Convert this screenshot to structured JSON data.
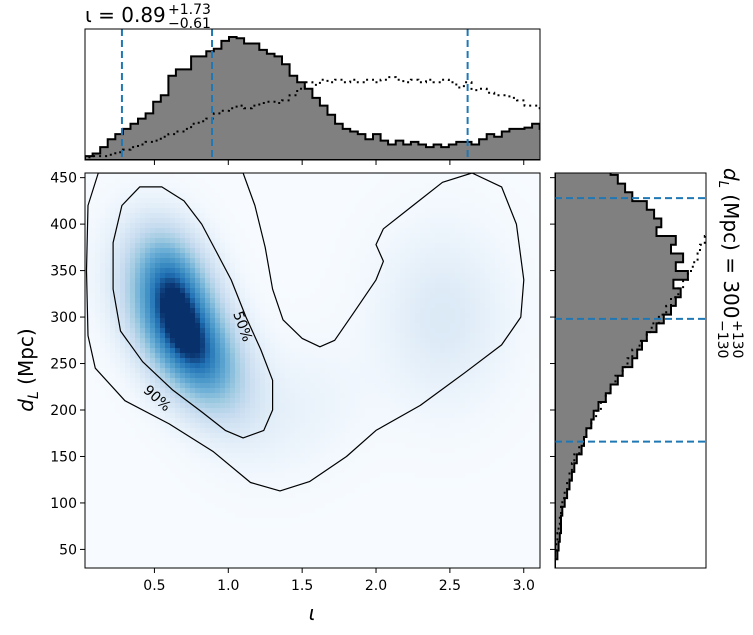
{
  "chart_data": [
    {
      "type": "heatmap",
      "panel": "joint",
      "xlabel": "ι",
      "ylabel_main": "d",
      "ylabel_sub": "L",
      "ylabel_unit": " (Mpc)",
      "xlim": [
        0.03,
        3.11
      ],
      "ylim": [
        30,
        455
      ],
      "xticks": [
        0.5,
        1.0,
        1.5,
        2.0,
        2.5,
        3.0
      ],
      "xtick_labels": [
        "0.5",
        "1.0",
        "1.5",
        "2.0",
        "2.5",
        "3.0"
      ],
      "yticks": [
        50,
        100,
        150,
        200,
        250,
        300,
        350,
        400,
        450
      ],
      "ytick_labels": [
        "50",
        "100",
        "150",
        "200",
        "250",
        "300",
        "350",
        "400",
        "450"
      ],
      "colormap": "Blues",
      "density_components": [
        {
          "x": 0.72,
          "y": 275,
          "sx": 0.24,
          "sy": 48,
          "rho": -0.5,
          "w": 1.0
        },
        {
          "x": 0.62,
          "y": 345,
          "sx": 0.18,
          "sy": 38,
          "rho": -0.3,
          "w": 0.55
        },
        {
          "x": 2.45,
          "y": 300,
          "sx": 0.28,
          "sy": 60,
          "rho": 0.0,
          "w": 0.12
        },
        {
          "x": 1.45,
          "y": 200,
          "sx": 0.3,
          "sy": 45,
          "rho": 0.2,
          "w": 0.05
        }
      ],
      "contours": [
        {
          "label": "50%",
          "label_x": 1.1,
          "label_y": 290,
          "points": [
            [
              0.55,
              440
            ],
            [
              0.7,
              425
            ],
            [
              0.82,
              400
            ],
            [
              0.92,
              370
            ],
            [
              1.02,
              340
            ],
            [
              1.12,
              300
            ],
            [
              1.22,
              265
            ],
            [
              1.3,
              232
            ],
            [
              1.3,
              200
            ],
            [
              1.24,
              178
            ],
            [
              1.1,
              170
            ],
            [
              0.98,
              178
            ],
            [
              0.82,
              198
            ],
            [
              0.62,
              222
            ],
            [
              0.42,
              252
            ],
            [
              0.27,
              285
            ],
            [
              0.22,
              330
            ],
            [
              0.22,
              380
            ],
            [
              0.28,
              420
            ],
            [
              0.4,
              440
            ]
          ]
        },
        {
          "label": "90%",
          "label_x": 0.52,
          "label_y": 213,
          "points": [
            [
              0.12,
              455
            ],
            [
              0.05,
              420
            ],
            [
              0.04,
              350
            ],
            [
              0.05,
              280
            ],
            [
              0.1,
              245
            ],
            [
              0.3,
              210
            ],
            [
              0.6,
              185
            ],
            [
              0.9,
              155
            ],
            [
              1.15,
              122
            ],
            [
              1.35,
              113
            ],
            [
              1.55,
              123
            ],
            [
              1.8,
              150
            ],
            [
              2.0,
              178
            ],
            [
              2.3,
              205
            ],
            [
              2.6,
              240
            ],
            [
              2.85,
              270
            ],
            [
              2.98,
              300
            ],
            [
              3.0,
              340
            ],
            [
              2.95,
              400
            ],
            [
              2.85,
              440
            ],
            [
              2.65,
              455
            ],
            [
              2.45,
              445
            ],
            [
              2.25,
              420
            ],
            [
              2.05,
              395
            ],
            [
              2.0,
              378
            ],
            [
              2.05,
              360
            ],
            [
              2.0,
              340
            ],
            [
              1.85,
              305
            ],
            [
              1.72,
              275
            ],
            [
              1.62,
              268
            ],
            [
              1.5,
              277
            ],
            [
              1.37,
              297
            ],
            [
              1.3,
              330
            ],
            [
              1.25,
              375
            ],
            [
              1.18,
              420
            ],
            [
              1.1,
              455
            ]
          ]
        }
      ]
    },
    {
      "type": "area",
      "panel": "top-marginal",
      "title": "ι = 0.89",
      "title_sup": "+1.73",
      "title_sub": "−0.61",
      "quantile_lines": [
        0.28,
        0.89,
        2.62
      ],
      "bins_x_start": 0.03,
      "bins_width": 0.0513,
      "filled_histogram": [
        3,
        5,
        10,
        16,
        20,
        24,
        28,
        32,
        36,
        45,
        50,
        65,
        70,
        70,
        80,
        80,
        84,
        86,
        92,
        95,
        94,
        90,
        90,
        85,
        82,
        80,
        74,
        65,
        60,
        55,
        48,
        42,
        35,
        28,
        24,
        22,
        20,
        16,
        20,
        15,
        12,
        15,
        12,
        14,
        12,
        10,
        12,
        10,
        12,
        14,
        14,
        12,
        16,
        20,
        18,
        22,
        24,
        24,
        25,
        28,
        24,
        28,
        22,
        18,
        15,
        10,
        8,
        6,
        8,
        6,
        4,
        3
      ],
      "dotted_histogram": [
        2,
        3,
        3,
        4,
        6,
        8,
        10,
        12,
        14,
        15,
        18,
        20,
        22,
        24,
        28,
        30,
        32,
        36,
        38,
        40,
        42,
        40,
        42,
        44,
        45,
        44,
        46,
        50,
        55,
        60,
        58,
        62,
        60,
        62,
        60,
        62,
        60,
        62,
        60,
        62,
        64,
        62,
        60,
        62,
        60,
        62,
        60,
        62,
        60,
        56,
        60,
        54,
        55,
        52,
        50,
        50,
        48,
        46,
        42,
        42,
        40,
        38,
        36,
        32,
        30,
        28,
        24,
        20,
        15,
        10,
        6,
        3
      ]
    },
    {
      "type": "area",
      "panel": "right-marginal",
      "title": "d",
      "title_sub_main": "L",
      "title_rest": " (Mpc) = 300",
      "title_sup": "+130",
      "title_sub": "−130",
      "quantile_lines": [
        166,
        298,
        428
      ],
      "bins_y_start": 30,
      "bins_height": 9.4,
      "filled_histogram": [
        0,
        2,
        3,
        4,
        5,
        5,
        6,
        8,
        10,
        12,
        14,
        16,
        18,
        22,
        24,
        26,
        30,
        32,
        36,
        42,
        46,
        52,
        56,
        64,
        68,
        72,
        76,
        84,
        90,
        96,
        100,
        104,
        98,
        110,
        100,
        106,
        96,
        100,
        84,
        88,
        82,
        76,
        64,
        58,
        52,
        46,
        38,
        30
      ],
      "dotted_histogram": [
        0,
        0,
        1,
        2,
        3,
        4,
        5,
        6,
        8,
        10,
        12,
        14,
        16,
        20,
        24,
        26,
        30,
        34,
        38,
        42,
        46,
        50,
        56,
        60,
        64,
        70,
        76,
        80,
        86,
        92,
        96,
        102,
        106,
        110,
        114,
        118,
        120,
        124,
        130,
        135,
        140,
        145,
        150,
        155,
        160,
        165,
        170,
        175
      ]
    }
  ]
}
